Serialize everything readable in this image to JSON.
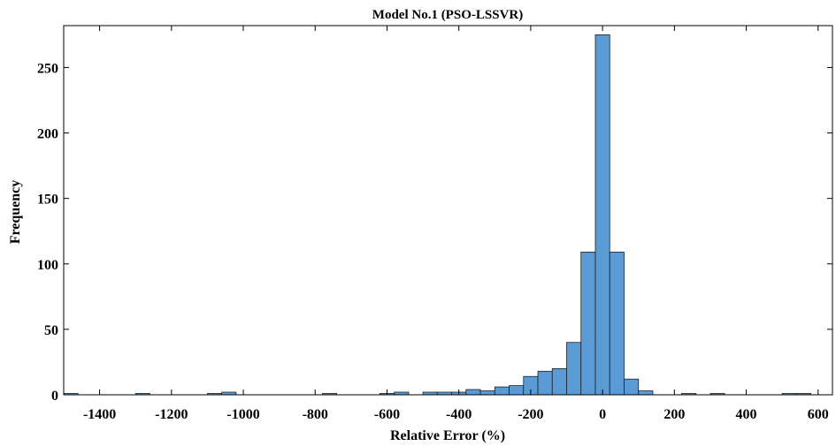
{
  "chart_data": {
    "type": "bar",
    "title": "Model No.1 (PSO-LSSVR)",
    "xlabel": "Relative Error (%)",
    "ylabel": "Frequency",
    "xlim": [
      -1500,
      640
    ],
    "ylim": [
      0,
      282
    ],
    "xticks": [
      -1400,
      -1200,
      -1000,
      -800,
      -600,
      -400,
      -200,
      0,
      200,
      400,
      600
    ],
    "yticks": [
      0,
      50,
      100,
      150,
      200,
      250
    ],
    "bin_width": 40,
    "bar_color": "#5b9bd5",
    "grid": false,
    "bins": [
      {
        "x0": -1500,
        "x1": -1460,
        "count": 1
      },
      {
        "x0": -1300,
        "x1": -1260,
        "count": 1
      },
      {
        "x0": -1100,
        "x1": -1060,
        "count": 1
      },
      {
        "x0": -1060,
        "x1": -1020,
        "count": 2
      },
      {
        "x0": -780,
        "x1": -740,
        "count": 1
      },
      {
        "x0": -620,
        "x1": -580,
        "count": 1
      },
      {
        "x0": -580,
        "x1": -540,
        "count": 2
      },
      {
        "x0": -500,
        "x1": -460,
        "count": 2
      },
      {
        "x0": -460,
        "x1": -420,
        "count": 2
      },
      {
        "x0": -420,
        "x1": -380,
        "count": 2
      },
      {
        "x0": -380,
        "x1": -340,
        "count": 4
      },
      {
        "x0": -340,
        "x1": -300,
        "count": 3
      },
      {
        "x0": -300,
        "x1": -260,
        "count": 6
      },
      {
        "x0": -260,
        "x1": -220,
        "count": 7
      },
      {
        "x0": -220,
        "x1": -180,
        "count": 14
      },
      {
        "x0": -180,
        "x1": -140,
        "count": 18
      },
      {
        "x0": -140,
        "x1": -100,
        "count": 20
      },
      {
        "x0": -100,
        "x1": -60,
        "count": 40
      },
      {
        "x0": -60,
        "x1": -20,
        "count": 109
      },
      {
        "x0": -20,
        "x1": 20,
        "count": 275
      },
      {
        "x0": 20,
        "x1": 60,
        "count": 109
      },
      {
        "x0": 60,
        "x1": 100,
        "count": 12
      },
      {
        "x0": 100,
        "x1": 140,
        "count": 3
      },
      {
        "x0": 220,
        "x1": 260,
        "count": 1
      },
      {
        "x0": 300,
        "x1": 340,
        "count": 1
      },
      {
        "x0": 500,
        "x1": 540,
        "count": 1
      },
      {
        "x0": 540,
        "x1": 580,
        "count": 1
      }
    ]
  }
}
